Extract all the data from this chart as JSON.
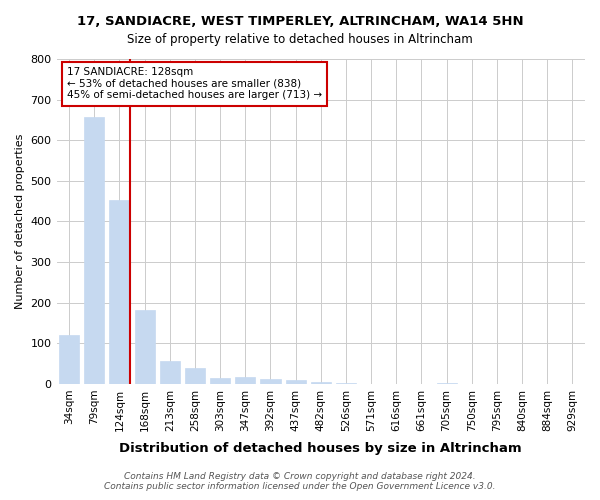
{
  "title": "17, SANDIACRE, WEST TIMPERLEY, ALTRINCHAM, WA14 5HN",
  "subtitle": "Size of property relative to detached houses in Altrincham",
  "xlabel": "Distribution of detached houses by size in Altrincham",
  "ylabel": "Number of detached properties",
  "categories": [
    "34sqm",
    "79sqm",
    "124sqm",
    "168sqm",
    "213sqm",
    "258sqm",
    "303sqm",
    "347sqm",
    "392sqm",
    "437sqm",
    "482sqm",
    "526sqm",
    "571sqm",
    "616sqm",
    "661sqm",
    "705sqm",
    "750sqm",
    "795sqm",
    "840sqm",
    "884sqm",
    "929sqm"
  ],
  "values": [
    120,
    658,
    452,
    183,
    57,
    40,
    15,
    18,
    12,
    9,
    5,
    3,
    0,
    0,
    0,
    2,
    0,
    0,
    0,
    0,
    0
  ],
  "bar_color": "#c6d9f0",
  "highlight_bar_index": 2,
  "highlight_line_color": "#cc0000",
  "annotation_text": "17 SANDIACRE: 128sqm\n← 53% of detached houses are smaller (838)\n45% of semi-detached houses are larger (713) →",
  "annotation_box_color": "#cc0000",
  "footer_line1": "Contains HM Land Registry data © Crown copyright and database right 2024.",
  "footer_line2": "Contains public sector information licensed under the Open Government Licence v3.0.",
  "ylim": [
    0,
    800
  ],
  "yticks": [
    0,
    100,
    200,
    300,
    400,
    500,
    600,
    700,
    800
  ],
  "bg_color": "#ffffff",
  "grid_color": "#cccccc"
}
